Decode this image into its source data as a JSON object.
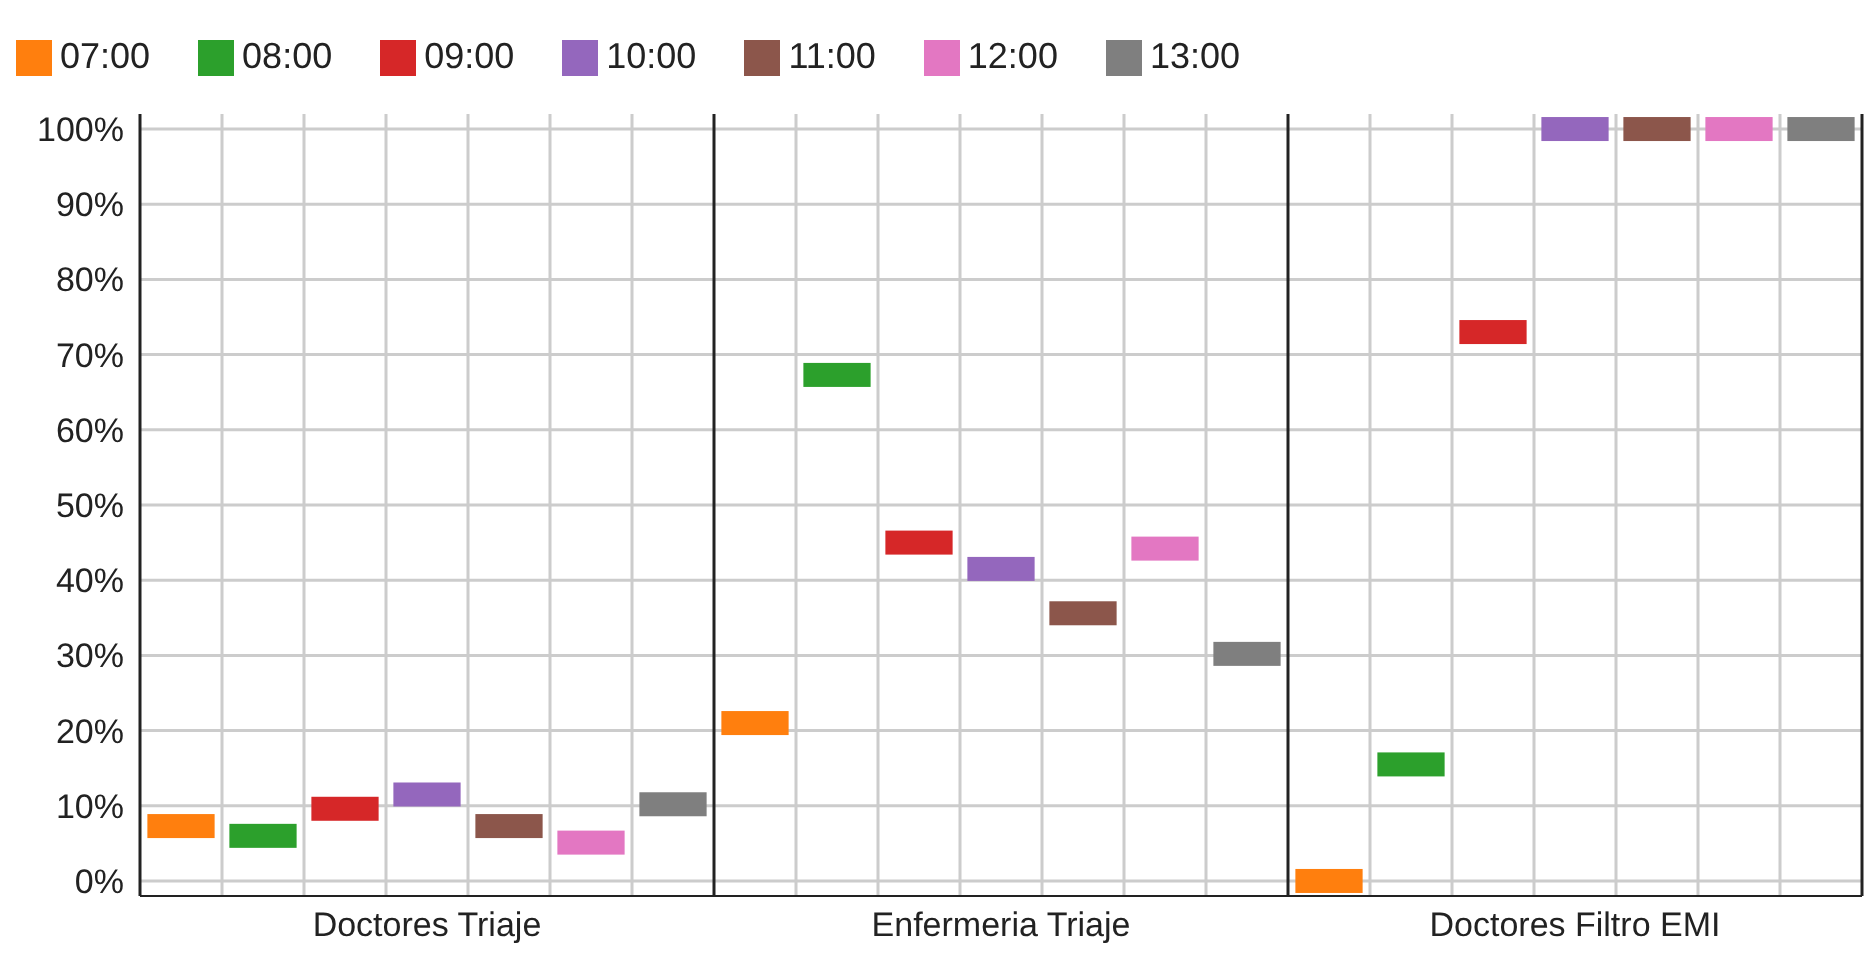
{
  "chart_data": {
    "type": "scatter",
    "marker": "square",
    "categories": [
      "Doctores Triaje",
      "Enfermeria Triaje",
      "Doctores Filtro EMI"
    ],
    "series": [
      {
        "name": "07:00",
        "color": "#ff7f0e",
        "values": [
          7.3,
          21,
          0
        ]
      },
      {
        "name": "08:00",
        "color": "#2ca02c",
        "values": [
          6,
          67.3,
          15.5
        ]
      },
      {
        "name": "09:00",
        "color": "#d62728",
        "values": [
          9.6,
          45,
          73
        ]
      },
      {
        "name": "10:00",
        "color": "#9467bd",
        "values": [
          11.5,
          41.5,
          100
        ]
      },
      {
        "name": "11:00",
        "color": "#8c564b",
        "values": [
          7.3,
          35.6,
          100
        ]
      },
      {
        "name": "12:00",
        "color": "#e377c2",
        "values": [
          5.1,
          44.2,
          100
        ]
      },
      {
        "name": "13:00",
        "color": "#7f7f7f",
        "values": [
          10.2,
          30.2,
          100
        ]
      }
    ],
    "ylim": [
      -2,
      102
    ],
    "yticks": [
      {
        "value": 0,
        "label": "0%"
      },
      {
        "value": 10,
        "label": "10%"
      },
      {
        "value": 20,
        "label": "20%"
      },
      {
        "value": 30,
        "label": "30%"
      },
      {
        "value": 40,
        "label": "40%"
      },
      {
        "value": 50,
        "label": "50%"
      },
      {
        "value": 60,
        "label": "60%"
      },
      {
        "value": 70,
        "label": "70%"
      },
      {
        "value": 80,
        "label": "80%"
      },
      {
        "value": 90,
        "label": "90%"
      },
      {
        "value": 100,
        "label": "100%"
      }
    ],
    "grid": true,
    "legend": "top left"
  }
}
